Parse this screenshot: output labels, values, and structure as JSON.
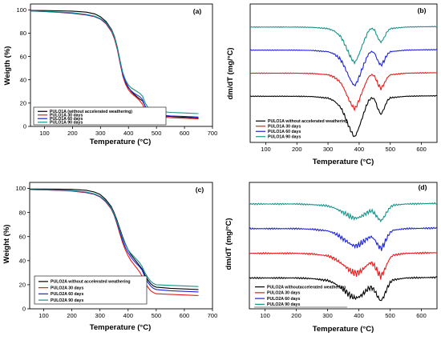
{
  "colors": {
    "black": "#000000",
    "red": "#e8191b",
    "blue": "#1f24d8",
    "teal": "#17938a"
  },
  "chart_data": [
    {
      "panel": "(a)",
      "type": "line",
      "xlabel": "Temperature (°C)",
      "ylabel": "Weigth (%)",
      "xlim": [
        50,
        700
      ],
      "ylim": [
        0,
        105
      ],
      "xticks": [
        100,
        200,
        300,
        400,
        500,
        600,
        700
      ],
      "yticks": [
        0,
        20,
        40,
        60,
        80,
        100
      ],
      "legend_position": "bottom-left",
      "series": [
        {
          "name": "PULO1A (without accelerated weathering)",
          "color": "black",
          "x": [
            50,
            100,
            150,
            200,
            250,
            280,
            300,
            320,
            340,
            350,
            360,
            370,
            380,
            390,
            400,
            410,
            420,
            430,
            440,
            450,
            460,
            470,
            480,
            500,
            550,
            600,
            650
          ],
          "y": [
            99.5,
            99.4,
            99.2,
            98.9,
            98.0,
            96.5,
            94.0,
            90.0,
            83.0,
            77.0,
            68.0,
            56.0,
            45.0,
            38.0,
            33.5,
            30.0,
            27.5,
            25.5,
            23.5,
            22.0,
            17.0,
            13.0,
            11.0,
            9.5,
            8.5,
            7.8,
            7.2
          ]
        },
        {
          "name": "PULO1A 30 days",
          "color": "red",
          "x": [
            50,
            100,
            150,
            200,
            250,
            280,
            300,
            320,
            340,
            350,
            360,
            370,
            380,
            390,
            400,
            410,
            420,
            430,
            440,
            450,
            460,
            470,
            480,
            500,
            550,
            600,
            650
          ],
          "y": [
            99.0,
            98.5,
            97.8,
            97.0,
            95.5,
            94.0,
            92.0,
            88.0,
            81.0,
            75.0,
            66.0,
            54.0,
            43.0,
            36.0,
            31.5,
            28.5,
            26.5,
            24.5,
            22.0,
            19.0,
            14.0,
            11.0,
            9.5,
            8.5,
            7.5,
            7.0,
            6.5
          ]
        },
        {
          "name": "PULO1A 60 days",
          "color": "blue",
          "x": [
            50,
            100,
            150,
            200,
            250,
            280,
            300,
            320,
            340,
            350,
            360,
            370,
            380,
            390,
            400,
            410,
            420,
            430,
            440,
            450,
            460,
            470,
            480,
            500,
            550,
            600,
            650
          ],
          "y": [
            99.0,
            98.6,
            98.0,
            97.2,
            95.8,
            94.2,
            92.2,
            88.5,
            82.0,
            76.0,
            67.0,
            55.0,
            44.5,
            37.5,
            33.0,
            30.5,
            28.5,
            27.0,
            25.5,
            23.0,
            17.0,
            13.0,
            11.5,
            10.0,
            9.0,
            8.5,
            8.0
          ]
        },
        {
          "name": "PULO1A 90 days",
          "color": "teal",
          "x": [
            50,
            100,
            150,
            200,
            250,
            280,
            300,
            320,
            340,
            350,
            360,
            370,
            380,
            390,
            400,
            410,
            420,
            430,
            440,
            450,
            460,
            470,
            480,
            500,
            550,
            600,
            650
          ],
          "y": [
            99.0,
            98.7,
            98.2,
            97.5,
            96.0,
            94.5,
            92.5,
            89.0,
            82.5,
            76.5,
            67.5,
            56.0,
            46.0,
            39.5,
            35.5,
            33.0,
            31.5,
            30.0,
            28.5,
            26.0,
            20.0,
            16.0,
            14.5,
            13.0,
            12.0,
            11.5,
            11.0
          ]
        }
      ]
    },
    {
      "panel": "(b)",
      "type": "line",
      "xlabel": "Temperature (°C)",
      "ylabel": "dm/dT (mg/°C)",
      "xlim": [
        50,
        650
      ],
      "xticks": [
        100,
        200,
        300,
        400,
        500,
        600
      ],
      "y_axis_ticks": "none",
      "legend_position": "bottom-left",
      "series": [
        {
          "name": "PULO1A without accelerated weathering",
          "color": "black",
          "x": [
            50,
            100,
            200,
            250,
            300,
            320,
            340,
            350,
            360,
            370,
            380,
            385,
            390,
            400,
            410,
            420,
            430,
            440,
            450,
            460,
            470,
            480,
            490,
            500,
            550,
            600,
            650
          ],
          "y": [
            0,
            0,
            0,
            -0.2,
            -1.2,
            -3.0,
            -7.0,
            -11.0,
            -16.0,
            -21.0,
            -25.0,
            -26.5,
            -25.0,
            -20.0,
            -14.0,
            -8.0,
            -3.0,
            -1.0,
            -2.0,
            -8.0,
            -12.0,
            -8.0,
            -3.0,
            -1.0,
            0,
            0.2,
            0.3
          ]
        },
        {
          "name": "PULO1A 30 days",
          "color": "red",
          "x": [
            50,
            100,
            200,
            250,
            300,
            320,
            340,
            350,
            360,
            370,
            380,
            385,
            390,
            400,
            410,
            420,
            430,
            440,
            450,
            460,
            470,
            480,
            490,
            500,
            550,
            600,
            650
          ],
          "y": [
            0,
            0,
            0,
            -0.2,
            -1.0,
            -2.5,
            -6.0,
            -9.5,
            -14.0,
            -18.5,
            -22.0,
            -23.0,
            -22.0,
            -17.5,
            -12.0,
            -7.0,
            -2.5,
            -0.8,
            -2.0,
            -7.0,
            -10.0,
            -7.0,
            -3.0,
            -1.0,
            0,
            0.2,
            0.3
          ]
        },
        {
          "name": "PULO1A 60 days",
          "color": "blue",
          "x": [
            50,
            100,
            200,
            250,
            300,
            320,
            340,
            350,
            360,
            370,
            380,
            385,
            390,
            400,
            410,
            420,
            430,
            440,
            450,
            460,
            470,
            480,
            490,
            500,
            550,
            600,
            650
          ],
          "y": [
            0,
            0,
            0,
            -0.2,
            -1.0,
            -2.5,
            -6.0,
            -9.5,
            -14.0,
            -18.5,
            -22.0,
            -23.0,
            -22.0,
            -17.5,
            -12.0,
            -7.0,
            -2.5,
            -0.8,
            -2.0,
            -7.0,
            -10.0,
            -7.0,
            -3.0,
            -1.0,
            0,
            0.2,
            0.3
          ]
        },
        {
          "name": "PULO1A 90 days",
          "color": "teal",
          "x": [
            50,
            100,
            200,
            250,
            300,
            320,
            340,
            350,
            360,
            370,
            380,
            385,
            390,
            400,
            410,
            420,
            430,
            440,
            450,
            460,
            470,
            480,
            490,
            500,
            550,
            600,
            650
          ],
          "y": [
            0,
            0,
            0,
            -0.2,
            -1.0,
            -2.5,
            -6.0,
            -9.5,
            -14.0,
            -18.5,
            -22.0,
            -23.0,
            -22.0,
            -17.5,
            -12.0,
            -7.0,
            -2.5,
            -0.8,
            -2.0,
            -7.0,
            -10.0,
            -7.0,
            -3.0,
            -1.0,
            0,
            0.2,
            0.3
          ]
        }
      ]
    },
    {
      "panel": "(c)",
      "type": "line",
      "xlabel": "Temperature (°C)",
      "ylabel": "Weight (%)",
      "xlim": [
        50,
        700
      ],
      "ylim": [
        0,
        105
      ],
      "xticks": [
        100,
        200,
        300,
        400,
        500,
        600,
        700
      ],
      "yticks": [
        0,
        20,
        40,
        60,
        80,
        100
      ],
      "legend_position": "bottom-left",
      "series": [
        {
          "name": "PULO2A without accelerated weathering",
          "color": "black",
          "x": [
            50,
            100,
            150,
            200,
            250,
            280,
            300,
            320,
            340,
            350,
            360,
            370,
            380,
            390,
            400,
            410,
            420,
            430,
            440,
            450,
            460,
            470,
            480,
            490,
            500,
            550,
            600,
            650
          ],
          "y": [
            99.5,
            99.5,
            99.4,
            99.2,
            98.5,
            97.0,
            95.0,
            91.0,
            85.0,
            80.0,
            74.0,
            67.0,
            60.0,
            54.0,
            49.0,
            45.0,
            42.0,
            39.0,
            36.0,
            33.0,
            28.0,
            24.0,
            21.0,
            19.0,
            18.0,
            17.0,
            16.5,
            16.0
          ]
        },
        {
          "name": "PULO2A 30 days",
          "color": "red",
          "x": [
            50,
            100,
            150,
            200,
            250,
            280,
            300,
            320,
            340,
            350,
            360,
            370,
            380,
            390,
            400,
            410,
            420,
            430,
            440,
            450,
            460,
            470,
            480,
            490,
            500,
            550,
            600,
            650
          ],
          "y": [
            99.0,
            98.8,
            98.4,
            97.8,
            96.5,
            95.0,
            93.0,
            89.0,
            83.0,
            78.0,
            71.0,
            63.0,
            55.0,
            49.0,
            44.0,
            40.0,
            37.0,
            34.0,
            31.0,
            27.0,
            22.0,
            18.0,
            15.0,
            13.5,
            12.5,
            12.0,
            11.5,
            11.0
          ]
        },
        {
          "name": "PULO2A 60 days",
          "color": "blue",
          "x": [
            50,
            100,
            150,
            200,
            250,
            280,
            300,
            320,
            340,
            350,
            360,
            370,
            380,
            390,
            400,
            410,
            420,
            430,
            440,
            450,
            460,
            470,
            480,
            490,
            500,
            550,
            600,
            650
          ],
          "y": [
            99.0,
            98.8,
            98.5,
            98.0,
            96.8,
            95.2,
            93.2,
            89.5,
            83.5,
            78.5,
            72.0,
            64.5,
            57.0,
            51.0,
            46.5,
            43.0,
            40.0,
            37.5,
            35.0,
            32.0,
            26.5,
            22.0,
            19.0,
            17.0,
            16.0,
            15.0,
            14.5,
            14.0
          ]
        },
        {
          "name": "PULO2A 90 days",
          "color": "teal",
          "x": [
            50,
            100,
            150,
            200,
            250,
            280,
            300,
            320,
            340,
            350,
            360,
            370,
            380,
            390,
            400,
            410,
            420,
            430,
            440,
            450,
            460,
            470,
            480,
            490,
            500,
            550,
            600,
            650
          ],
          "y": [
            99.0,
            98.9,
            98.6,
            98.2,
            97.0,
            95.5,
            93.5,
            90.0,
            84.0,
            79.0,
            73.0,
            66.0,
            59.0,
            53.5,
            49.0,
            46.0,
            43.5,
            41.0,
            38.5,
            35.0,
            30.0,
            26.0,
            23.0,
            21.0,
            20.0,
            19.5,
            19.0,
            18.5
          ]
        }
      ]
    },
    {
      "panel": "(d)",
      "type": "line",
      "xlabel": "Temperature (°C)",
      "ylabel": "dm/dT (mg/°C)",
      "xlim": [
        50,
        650
      ],
      "xticks": [
        100,
        200,
        300,
        400,
        500,
        600
      ],
      "y_axis_ticks": "none",
      "legend_position": "bottom-left",
      "series": [
        {
          "name": "PULO2A withoutaccelerated weathering",
          "color": "black",
          "x": [
            50,
            100,
            200,
            250,
            300,
            320,
            340,
            360,
            370,
            380,
            390,
            400,
            410,
            420,
            430,
            440,
            450,
            460,
            470,
            480,
            490,
            500,
            510,
            550,
            600,
            650
          ],
          "y": [
            0,
            0,
            0,
            -0.2,
            -0.8,
            -1.6,
            -3.0,
            -4.5,
            -5.5,
            -6.2,
            -6.5,
            -6.2,
            -5.5,
            -4.5,
            -3.5,
            -3.0,
            -4.0,
            -6.0,
            -7.5,
            -6.0,
            -3.5,
            -1.5,
            -0.6,
            0,
            0.1,
            0.2
          ]
        },
        {
          "name": "PULO2A 30 days",
          "color": "red",
          "x": [
            50,
            100,
            200,
            250,
            300,
            320,
            340,
            360,
            370,
            380,
            390,
            400,
            410,
            420,
            430,
            440,
            450,
            460,
            470,
            480,
            490,
            500,
            510,
            550,
            600,
            650
          ],
          "y": [
            0,
            0,
            0,
            -0.2,
            -0.8,
            -1.6,
            -3.0,
            -4.5,
            -5.5,
            -6.2,
            -6.5,
            -6.2,
            -5.5,
            -4.5,
            -3.5,
            -3.0,
            -4.0,
            -6.0,
            -7.5,
            -6.0,
            -3.5,
            -1.5,
            -0.6,
            0,
            0.1,
            0.2
          ]
        },
        {
          "name": "PULO2A 60 days",
          "color": "blue",
          "x": [
            50,
            100,
            200,
            250,
            300,
            320,
            340,
            360,
            370,
            380,
            390,
            400,
            410,
            420,
            430,
            440,
            450,
            460,
            470,
            480,
            490,
            500,
            510,
            550,
            600,
            650
          ],
          "y": [
            0,
            0,
            0,
            -0.2,
            -0.7,
            -1.4,
            -2.6,
            -4.0,
            -4.8,
            -5.4,
            -5.6,
            -5.3,
            -4.6,
            -3.8,
            -3.0,
            -2.6,
            -3.5,
            -5.2,
            -6.5,
            -5.2,
            -3.0,
            -1.3,
            -0.5,
            0,
            0.1,
            0.2
          ]
        },
        {
          "name": "PULO2A 90 days",
          "color": "teal",
          "x": [
            50,
            100,
            200,
            250,
            300,
            320,
            340,
            360,
            370,
            380,
            390,
            400,
            410,
            420,
            430,
            440,
            450,
            460,
            470,
            480,
            490,
            500,
            510,
            550,
            600,
            650
          ],
          "y": [
            0,
            0,
            0,
            -0.2,
            -0.6,
            -1.2,
            -2.2,
            -3.3,
            -4.0,
            -4.4,
            -4.6,
            -4.4,
            -3.9,
            -3.2,
            -2.6,
            -2.2,
            -3.0,
            -4.4,
            -5.5,
            -4.4,
            -2.6,
            -1.1,
            -0.4,
            0,
            0.1,
            0.2
          ]
        }
      ]
    }
  ]
}
